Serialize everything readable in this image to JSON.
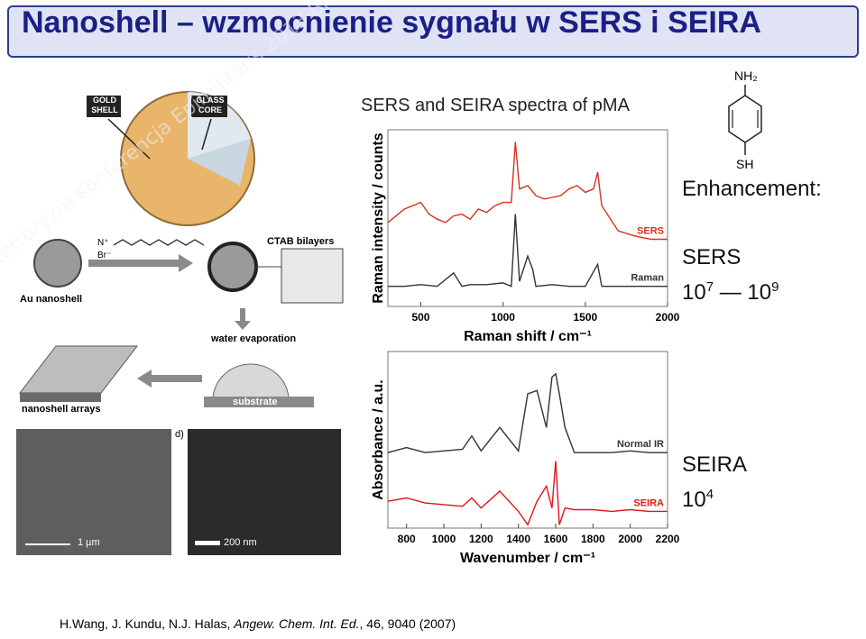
{
  "slide": {
    "title": "Nanoshell – wzmocnienie sygnału w SERS i SEIRA",
    "watermark": "Bioterroryzm Konferencja Epimilitaris 2013 Bioterroryzm Konferencja Epimilitaris 2013"
  },
  "nanoshell_figure": {
    "gold_shell": "GOLD SHELL",
    "glass_core": "GLASS CORE",
    "au_nanoshell": "Au nanoshell",
    "ctab_bilayers": "CTAB bilayers",
    "ctab_n": "N⁺",
    "ctab_br": "Br⁻",
    "water_evaporation": "water evaporation",
    "substrate": "substrate",
    "nanoshell_arrays": "nanoshell arrays",
    "panel_d": "d)",
    "scale_1": "1 µm",
    "scale_2": "200 nm"
  },
  "spectra_caption": "SERS and SEIRA spectra of pMA",
  "molecule": {
    "top": "NH₂",
    "bottom": "SH"
  },
  "enhancement": {
    "heading": "Enhancement:",
    "sers_label": "SERS",
    "sers_base_1": "10",
    "sers_exp_1": "7",
    "sers_dash": "—",
    "sers_base_2": "10",
    "sers_exp_2": "9",
    "seira_label": "SEIRA",
    "seira_base": "10",
    "seira_exp": "4"
  },
  "reference": {
    "authors": "H.Wang, J. Kundu, N.J. Halas, ",
    "journal": "Angew. Chem. Int. Ed.",
    "rest": ", 46, 9040 (2007)"
  },
  "chart_data": [
    {
      "type": "line",
      "xlabel": "Raman shift / cm⁻¹",
      "ylabel": "Raman intensity / counts",
      "xlim": [
        300,
        2000
      ],
      "x_ticks": [
        500,
        1000,
        1500,
        2000
      ],
      "series": [
        {
          "name": "SERS",
          "color": "#d9301e",
          "x": [
            300,
            400,
            500,
            550,
            600,
            650,
            700,
            750,
            800,
            850,
            900,
            950,
            1000,
            1050,
            1075,
            1100,
            1150,
            1200,
            1250,
            1300,
            1350,
            1400,
            1450,
            1500,
            1550,
            1575,
            1600,
            1700,
            1800,
            1900,
            2000
          ],
          "y": [
            0.5,
            0.58,
            0.62,
            0.55,
            0.52,
            0.5,
            0.54,
            0.55,
            0.52,
            0.58,
            0.56,
            0.6,
            0.62,
            0.62,
            0.98,
            0.7,
            0.72,
            0.66,
            0.64,
            0.65,
            0.66,
            0.7,
            0.72,
            0.68,
            0.7,
            0.8,
            0.6,
            0.45,
            0.42,
            0.4,
            0.4
          ]
        },
        {
          "name": "Raman",
          "color": "#333333",
          "x": [
            300,
            400,
            500,
            600,
            700,
            750,
            800,
            900,
            1000,
            1050,
            1075,
            1100,
            1150,
            1180,
            1200,
            1300,
            1400,
            1500,
            1575,
            1600,
            1700,
            1800,
            1900,
            2000
          ],
          "y": [
            0.12,
            0.12,
            0.13,
            0.12,
            0.2,
            0.12,
            0.13,
            0.13,
            0.14,
            0.12,
            0.55,
            0.15,
            0.3,
            0.22,
            0.12,
            0.13,
            0.12,
            0.12,
            0.25,
            0.12,
            0.12,
            0.12,
            0.12,
            0.12
          ]
        }
      ]
    },
    {
      "type": "line",
      "xlabel": "Wavenumber / cm⁻¹",
      "ylabel": "Absorbance / a.u.",
      "xlim": [
        700,
        2200
      ],
      "x_ticks": [
        800,
        1000,
        1200,
        1400,
        1600,
        1800,
        2000,
        2200
      ],
      "series": [
        {
          "name": "Normal IR",
          "color": "#333333",
          "x": [
            700,
            800,
            900,
            1000,
            1100,
            1150,
            1200,
            1300,
            1400,
            1450,
            1500,
            1550,
            1580,
            1600,
            1620,
            1650,
            1700,
            1800,
            1900,
            2000,
            2100,
            2200
          ],
          "y": [
            0.45,
            0.48,
            0.45,
            0.46,
            0.47,
            0.55,
            0.46,
            0.6,
            0.46,
            0.8,
            0.82,
            0.6,
            0.9,
            0.92,
            0.8,
            0.6,
            0.45,
            0.45,
            0.45,
            0.46,
            0.45,
            0.45
          ]
        },
        {
          "name": "SEIRA",
          "color": "#e0161a",
          "x": [
            700,
            800,
            900,
            1000,
            1100,
            1150,
            1200,
            1300,
            1400,
            1450,
            1500,
            1550,
            1580,
            1600,
            1620,
            1650,
            1700,
            1800,
            1900,
            2000,
            2100,
            2200
          ],
          "y": [
            0.16,
            0.18,
            0.15,
            0.14,
            0.13,
            0.18,
            0.12,
            0.22,
            0.1,
            0.02,
            0.16,
            0.25,
            0.12,
            0.4,
            0.02,
            0.12,
            0.11,
            0.11,
            0.1,
            0.11,
            0.1,
            0.1
          ]
        }
      ]
    }
  ]
}
